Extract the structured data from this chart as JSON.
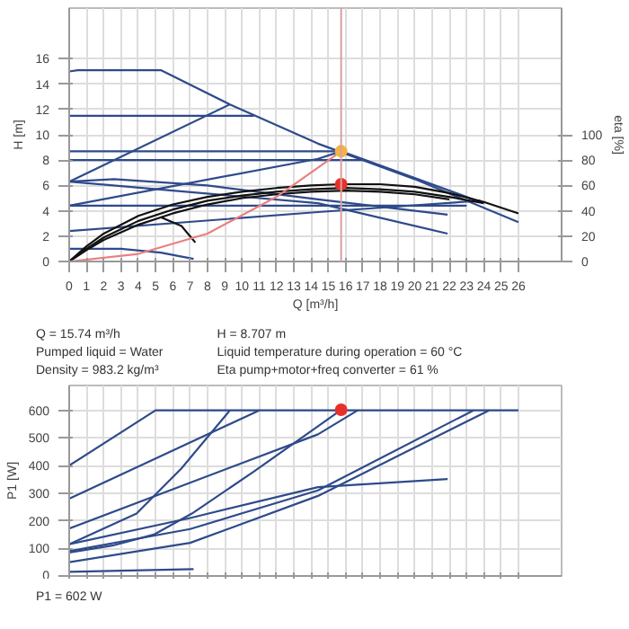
{
  "chart_data": [
    {
      "type": "line",
      "xlabel": "Q [m³/h]",
      "ylabel": "H [m]",
      "y2label": "eta [%]",
      "xlim": [
        0,
        28.5
      ],
      "xticks": [
        0,
        1,
        2,
        3,
        4,
        5,
        6,
        7,
        8,
        9,
        10,
        11,
        12,
        13,
        14,
        15,
        16,
        17,
        18,
        19,
        20,
        21,
        22,
        23,
        24,
        25,
        26
      ],
      "ylim": [
        0,
        20
      ],
      "yticks": [
        0,
        2,
        4,
        6,
        8,
        10,
        12,
        14,
        16
      ],
      "y2lim": [
        0,
        200
      ],
      "y2ticks": [
        0,
        20,
        40,
        60,
        80,
        100
      ],
      "grid": true,
      "series": [
        {
          "color": "#2e4a8a",
          "x": [
            0,
            0.5,
            5.3,
            9.3,
            14.4,
            20,
            26
          ],
          "values": [
            15,
            15.1,
            15.1,
            12.4,
            9.3,
            6.5,
            3.1
          ]
        },
        {
          "color": "#2e4a8a",
          "x": [
            0,
            9.3
          ],
          "values": [
            6.3,
            12.4
          ]
        },
        {
          "color": "#2e4a8a",
          "x": [
            0,
            10.7
          ],
          "values": [
            11.5,
            11.5
          ]
        },
        {
          "color": "#2e4a8a",
          "x": [
            0,
            15.74
          ],
          "values": [
            8.7,
            8.7
          ]
        },
        {
          "color": "#2e4a8a",
          "x": [
            0,
            17
          ],
          "values": [
            8.0,
            8.0
          ]
        },
        {
          "color": "#2e4a8a",
          "x": [
            0,
            14.4,
            15.74,
            23.8
          ],
          "values": [
            4.4,
            8.1,
            8.7,
            4.7
          ]
        },
        {
          "color": "#2e4a8a",
          "x": [
            0,
            23
          ],
          "values": [
            4.4,
            4.4
          ]
        },
        {
          "color": "#2e4a8a",
          "x": [
            0,
            2.6,
            8,
            14.4,
            21.9
          ],
          "values": [
            6.3,
            6.5,
            6.0,
            4.9,
            3.7
          ]
        },
        {
          "color": "#2e4a8a",
          "x": [
            0,
            14.4,
            21.9
          ],
          "values": [
            6.3,
            4.6,
            2.2
          ]
        },
        {
          "color": "#2e4a8a",
          "x": [
            0,
            14.4,
            23.8
          ],
          "values": [
            2.4,
            3.9,
            4.8
          ]
        },
        {
          "color": "#2e4a8a",
          "x": [
            0,
            3,
            5.3,
            7.2
          ],
          "values": [
            1.0,
            1.0,
            0.7,
            0.2
          ]
        },
        {
          "color": "#111111",
          "axis": "y2",
          "x": [
            0,
            1,
            2,
            4,
            6,
            8,
            10,
            12,
            14,
            15.74,
            18,
            20,
            22,
            24,
            26
          ],
          "values": [
            0,
            12,
            22,
            36,
            45,
            51,
            55,
            58,
            60,
            61,
            61,
            59,
            54,
            47,
            38
          ]
        },
        {
          "color": "#111111",
          "axis": "y2",
          "x": [
            0,
            1,
            2,
            4,
            6,
            8,
            10,
            12,
            14,
            16,
            18,
            20,
            22,
            24
          ],
          "values": [
            0,
            10,
            19,
            32,
            41,
            48,
            52,
            55,
            57,
            58,
            57,
            55,
            51,
            46
          ]
        },
        {
          "color": "#111111",
          "axis": "y2",
          "x": [
            0,
            1,
            2,
            4,
            6,
            8,
            10,
            12,
            14,
            16,
            18,
            20,
            22
          ],
          "values": [
            0,
            9,
            17,
            29,
            38,
            45,
            50,
            53,
            55,
            56,
            55,
            53,
            49
          ]
        },
        {
          "color": "#111111",
          "axis": "y2",
          "x": [
            5.3,
            6.5,
            7.3
          ],
          "values": [
            35,
            28,
            15
          ]
        },
        {
          "color": "#e88080",
          "x": [
            0,
            4,
            8,
            12,
            15.74
          ],
          "values": [
            0,
            0.6,
            2.2,
            5.1,
            8.7
          ]
        },
        {
          "type": "scatter",
          "color": "#f5b342",
          "x": [
            15.74
          ],
          "values": [
            8.7
          ]
        },
        {
          "type": "scatter",
          "color": "#e8302a",
          "axis": "y2",
          "x": [
            15.74
          ],
          "values": [
            61
          ]
        }
      ],
      "ref_lines": [
        {
          "axis": "x",
          "value": 15.74,
          "color": "#d8a0a0"
        }
      ],
      "annotations": [
        "Q = 15.74 m³/h",
        "H = 8.707 m",
        "Pumped liquid = Water",
        "Liquid temperature during operation = 60 °C",
        "Density = 983.2 kg/m³",
        "Eta pump+motor+freq converter = 61 %"
      ]
    },
    {
      "type": "line",
      "ylabel": "P1 [W]",
      "xlim": [
        0,
        28.5
      ],
      "xticks": [
        0,
        1,
        2,
        3,
        4,
        5,
        6,
        7,
        8,
        9,
        10,
        11,
        12,
        13,
        14,
        15,
        16,
        17,
        18,
        19,
        20,
        21,
        22,
        23,
        24,
        25,
        26
      ],
      "ylim": [
        0,
        690
      ],
      "yticks": [
        0,
        100,
        200,
        300,
        400,
        500,
        600
      ],
      "grid": true,
      "tick_labels": "y",
      "series": [
        {
          "color": "#2e4a8a",
          "x": [
            0,
            5.0,
            26
          ],
          "values": [
            400,
            600,
            600
          ]
        },
        {
          "color": "#2e4a8a",
          "x": [
            0,
            11
          ],
          "values": [
            280,
            600
          ]
        },
        {
          "color": "#2e4a8a",
          "x": [
            0,
            14.4,
            16.7
          ],
          "values": [
            172,
            513,
            600
          ]
        },
        {
          "color": "#2e4a8a",
          "x": [
            0,
            3.9,
            6.5,
            9.3
          ],
          "values": [
            115,
            226,
            390,
            600
          ]
        },
        {
          "color": "#2e4a8a",
          "x": [
            0,
            2.5,
            4.9,
            7.1,
            10.7,
            14.4,
            15.74
          ],
          "values": [
            85,
            110,
            150,
            226,
            379,
            542,
            602
          ]
        },
        {
          "color": "#2e4a8a",
          "x": [
            0,
            7,
            14.4,
            21.9
          ],
          "values": [
            115,
            210,
            322,
            351
          ]
        },
        {
          "color": "#2e4a8a",
          "x": [
            0,
            7,
            14.4,
            23.4
          ],
          "values": [
            90,
            170,
            310,
            600
          ]
        },
        {
          "color": "#2e4a8a",
          "x": [
            0,
            7,
            14.4,
            24.3
          ],
          "values": [
            50,
            120,
            290,
            600
          ]
        },
        {
          "color": "#2e4a8a",
          "x": [
            0,
            7.2
          ],
          "values": [
            15,
            25
          ]
        },
        {
          "type": "scatter",
          "color": "#e8302a",
          "x": [
            15.74
          ],
          "values": [
            602
          ]
        }
      ],
      "annotations": [
        "P1 = 602 W"
      ]
    }
  ]
}
